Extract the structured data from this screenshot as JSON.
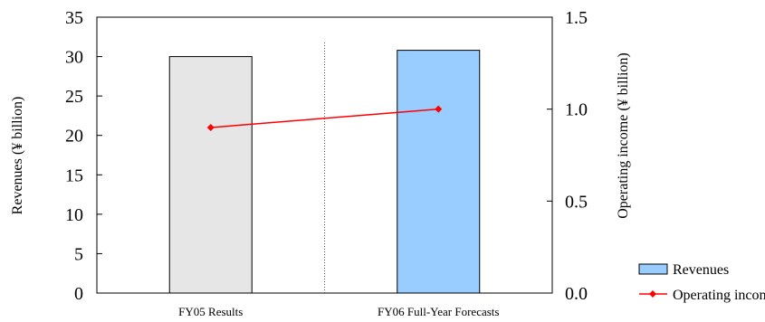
{
  "chart_data": {
    "type": "bar",
    "categories": [
      "FY05 Results",
      "FY06 Full-Year Forecasts"
    ],
    "series": [
      {
        "name": "Revenues",
        "kind": "bar",
        "axis": "left",
        "values": [
          30.0,
          30.8
        ],
        "colors": [
          "#e6e6e6",
          "#99ccff"
        ]
      },
      {
        "name": "Operating income",
        "kind": "line",
        "axis": "right",
        "values": [
          0.9,
          1.0
        ],
        "color": "#ff0000"
      }
    ],
    "ylabel": "Revenues (¥ billion)",
    "y2label": "Operating income (¥ billion)",
    "ylim": [
      0,
      35
    ],
    "y2lim": [
      0,
      1.5
    ],
    "yticks": [
      "0",
      "5",
      "10",
      "15",
      "20",
      "25",
      "30",
      "35"
    ],
    "y2ticks": [
      "0.0",
      "0.5",
      "1.0",
      "1.5"
    ],
    "grid": false,
    "divider": "dotted vertical line between categories",
    "legend_position": "bottom-right"
  }
}
